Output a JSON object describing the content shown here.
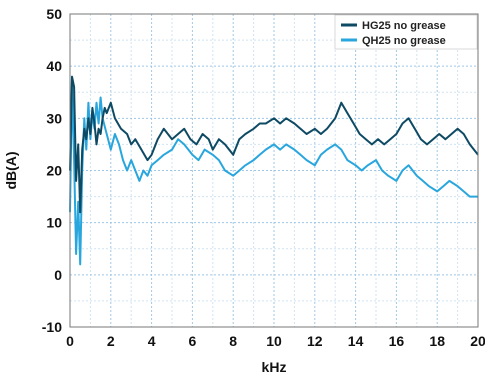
{
  "chart_data": {
    "type": "line",
    "xlabel": "kHz",
    "ylabel": "dB(A)",
    "xlim": [
      0,
      20
    ],
    "ylim": [
      -10,
      50
    ],
    "x_ticks": [
      "0",
      "2",
      "4",
      "6",
      "8",
      "10",
      "12",
      "14",
      "16",
      "18",
      "20"
    ],
    "y_ticks": [
      "-10",
      "0",
      "10",
      "20",
      "30",
      "40",
      "50"
    ],
    "grid": true,
    "legend_position": "top-right",
    "series": [
      {
        "name": "HG25 no grease",
        "color": "#0e4a63",
        "points": [
          [
            0.0,
            20
          ],
          [
            0.1,
            38
          ],
          [
            0.2,
            36
          ],
          [
            0.3,
            18
          ],
          [
            0.4,
            25
          ],
          [
            0.5,
            12
          ],
          [
            0.6,
            24
          ],
          [
            0.7,
            28
          ],
          [
            0.8,
            26
          ],
          [
            0.9,
            30
          ],
          [
            1.0,
            27
          ],
          [
            1.1,
            32
          ],
          [
            1.2,
            29
          ],
          [
            1.3,
            25
          ],
          [
            1.4,
            28
          ],
          [
            1.5,
            27
          ],
          [
            1.6,
            30
          ],
          [
            1.7,
            32
          ],
          [
            1.8,
            31
          ],
          [
            2.0,
            33
          ],
          [
            2.2,
            30
          ],
          [
            2.5,
            28
          ],
          [
            2.8,
            27
          ],
          [
            3.0,
            25
          ],
          [
            3.2,
            26
          ],
          [
            3.5,
            24
          ],
          [
            3.8,
            22
          ],
          [
            4.0,
            23
          ],
          [
            4.3,
            26
          ],
          [
            4.6,
            28
          ],
          [
            4.8,
            27
          ],
          [
            5.0,
            26
          ],
          [
            5.3,
            27
          ],
          [
            5.6,
            28
          ],
          [
            5.9,
            26
          ],
          [
            6.2,
            25
          ],
          [
            6.5,
            27
          ],
          [
            6.8,
            26
          ],
          [
            7.0,
            24
          ],
          [
            7.3,
            26
          ],
          [
            7.6,
            25
          ],
          [
            8.0,
            23
          ],
          [
            8.3,
            26
          ],
          [
            8.6,
            27
          ],
          [
            9.0,
            28
          ],
          [
            9.3,
            29
          ],
          [
            9.6,
            29
          ],
          [
            10.0,
            30
          ],
          [
            10.3,
            29
          ],
          [
            10.6,
            30
          ],
          [
            11.0,
            29
          ],
          [
            11.3,
            28
          ],
          [
            11.6,
            27
          ],
          [
            12.0,
            28
          ],
          [
            12.3,
            27
          ],
          [
            12.6,
            28
          ],
          [
            13.0,
            30
          ],
          [
            13.3,
            33
          ],
          [
            13.6,
            31
          ],
          [
            13.9,
            29
          ],
          [
            14.2,
            27
          ],
          [
            14.5,
            26
          ],
          [
            14.8,
            25
          ],
          [
            15.1,
            26
          ],
          [
            15.4,
            25
          ],
          [
            15.7,
            26
          ],
          [
            16.0,
            27
          ],
          [
            16.3,
            29
          ],
          [
            16.6,
            30
          ],
          [
            16.9,
            28
          ],
          [
            17.2,
            26
          ],
          [
            17.5,
            25
          ],
          [
            17.8,
            26
          ],
          [
            18.1,
            27
          ],
          [
            18.4,
            26
          ],
          [
            18.7,
            27
          ],
          [
            19.0,
            28
          ],
          [
            19.3,
            27
          ],
          [
            19.6,
            25
          ],
          [
            20.0,
            23
          ]
        ]
      },
      {
        "name": "QH25 no grease",
        "color": "#29a6dd",
        "points": [
          [
            0.0,
            12
          ],
          [
            0.1,
            37
          ],
          [
            0.2,
            22
          ],
          [
            0.3,
            4
          ],
          [
            0.4,
            14
          ],
          [
            0.5,
            2
          ],
          [
            0.6,
            20
          ],
          [
            0.7,
            30
          ],
          [
            0.8,
            24
          ],
          [
            0.9,
            33
          ],
          [
            1.0,
            26
          ],
          [
            1.1,
            31
          ],
          [
            1.2,
            28
          ],
          [
            1.3,
            33
          ],
          [
            1.4,
            29
          ],
          [
            1.5,
            34
          ],
          [
            1.6,
            30
          ],
          [
            1.8,
            27
          ],
          [
            2.0,
            24
          ],
          [
            2.2,
            27
          ],
          [
            2.4,
            25
          ],
          [
            2.6,
            22
          ],
          [
            2.8,
            20
          ],
          [
            3.0,
            22
          ],
          [
            3.2,
            20
          ],
          [
            3.4,
            18
          ],
          [
            3.6,
            20
          ],
          [
            3.8,
            19
          ],
          [
            4.0,
            21
          ],
          [
            4.3,
            22
          ],
          [
            4.6,
            23
          ],
          [
            5.0,
            24
          ],
          [
            5.3,
            26
          ],
          [
            5.6,
            25
          ],
          [
            6.0,
            23
          ],
          [
            6.3,
            22
          ],
          [
            6.6,
            24
          ],
          [
            7.0,
            23
          ],
          [
            7.3,
            22
          ],
          [
            7.6,
            20
          ],
          [
            8.0,
            19
          ],
          [
            8.3,
            20
          ],
          [
            8.6,
            21
          ],
          [
            9.0,
            22
          ],
          [
            9.3,
            23
          ],
          [
            9.6,
            24
          ],
          [
            10.0,
            25
          ],
          [
            10.3,
            24
          ],
          [
            10.6,
            25
          ],
          [
            11.0,
            24
          ],
          [
            11.3,
            23
          ],
          [
            11.6,
            22
          ],
          [
            12.0,
            21
          ],
          [
            12.3,
            23
          ],
          [
            12.6,
            24
          ],
          [
            13.0,
            25
          ],
          [
            13.3,
            24
          ],
          [
            13.6,
            22
          ],
          [
            14.0,
            21
          ],
          [
            14.3,
            20
          ],
          [
            14.6,
            21
          ],
          [
            15.0,
            22
          ],
          [
            15.3,
            20
          ],
          [
            15.6,
            19
          ],
          [
            16.0,
            18
          ],
          [
            16.3,
            20
          ],
          [
            16.6,
            21
          ],
          [
            17.0,
            19
          ],
          [
            17.3,
            18
          ],
          [
            17.6,
            17
          ],
          [
            18.0,
            16
          ],
          [
            18.3,
            17
          ],
          [
            18.6,
            18
          ],
          [
            19.0,
            17
          ],
          [
            19.3,
            16
          ],
          [
            19.6,
            15
          ],
          [
            20.0,
            15
          ]
        ]
      }
    ]
  }
}
